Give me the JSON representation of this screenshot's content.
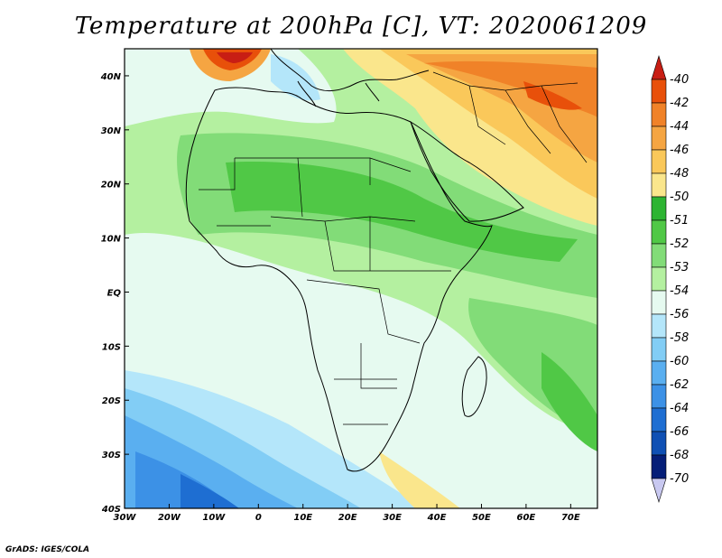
{
  "title": "Temperature at 200hPa [C], VT: 2020061209",
  "credit": "GrADS: IGES/COLA",
  "map": {
    "lon_range": [
      -30,
      76
    ],
    "lat_range": [
      -40,
      45
    ],
    "lon_ticks": [
      {
        "value": -30,
        "label": "30W"
      },
      {
        "value": -20,
        "label": "20W"
      },
      {
        "value": -10,
        "label": "10W"
      },
      {
        "value": 0,
        "label": "0"
      },
      {
        "value": 10,
        "label": "10E"
      },
      {
        "value": 20,
        "label": "20E"
      },
      {
        "value": 30,
        "label": "30E"
      },
      {
        "value": 40,
        "label": "40E"
      },
      {
        "value": 50,
        "label": "50E"
      },
      {
        "value": 60,
        "label": "60E"
      },
      {
        "value": 70,
        "label": "70E"
      }
    ],
    "lat_ticks": [
      {
        "value": 40,
        "label": "40N"
      },
      {
        "value": 30,
        "label": "30N"
      },
      {
        "value": 20,
        "label": "20N"
      },
      {
        "value": 10,
        "label": "10N"
      },
      {
        "value": 0,
        "label": "EQ"
      },
      {
        "value": -10,
        "label": "10S"
      },
      {
        "value": -20,
        "label": "20S"
      },
      {
        "value": -30,
        "label": "30S"
      },
      {
        "value": -40,
        "label": "40S"
      }
    ]
  },
  "colorbar": {
    "levels": [
      "-40",
      "-42",
      "-44",
      "-46",
      "-48",
      "-50",
      "-51",
      "-52",
      "-53",
      "-54",
      "-56",
      "-58",
      "-60",
      "-62",
      "-64",
      "-66",
      "-68",
      "-70"
    ],
    "colors": [
      "#c81e14",
      "#e8500a",
      "#f08228",
      "#f5a542",
      "#fac85a",
      "#fae68c",
      "#2db432",
      "#50c846",
      "#82dc78",
      "#b4f0a0",
      "#e6faf0",
      "#b4e6fa",
      "#82cdf5",
      "#5aaff0",
      "#3c91e6",
      "#1e6ed2",
      "#0f50b4",
      "#051e78",
      "#c8c8f0"
    ]
  }
}
